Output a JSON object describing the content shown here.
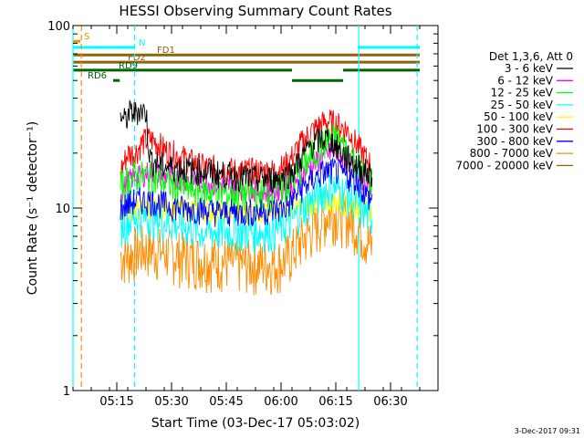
{
  "chart_data": {
    "type": "line",
    "title": "HESSI Observing Summary Count Rates",
    "xlabel": "Start Time (03-Dec-17 05:03:02)",
    "ylabel": "Count Rate (s⁻¹ detector⁻¹)",
    "y_scale": "log",
    "ylim": [
      1,
      100
    ],
    "xlim_minutes": [
      0,
      100
    ],
    "x_ticks": [
      "05:15",
      "05:30",
      "05:45",
      "06:00",
      "06:15",
      "06:30"
    ],
    "y_ticks": [
      "1",
      "10",
      "100"
    ],
    "legend_title": "Det 1,3,6, Att 0",
    "legend_position": "right",
    "timestamp": "3-Dec-2017 09:31",
    "series": [
      {
        "name": "3 - 6 keV",
        "color": "#000000",
        "x": [
          13,
          14,
          15,
          16,
          17,
          18,
          19,
          20,
          21,
          22,
          25,
          30,
          35,
          40,
          45,
          50,
          55,
          58,
          60,
          62,
          65,
          68,
          70,
          72,
          75,
          78,
          80,
          82
        ],
        "y": [
          33,
          30,
          32,
          34,
          33,
          35,
          34,
          34,
          19,
          18,
          17,
          16.5,
          16,
          15.5,
          15,
          14.5,
          14.5,
          15,
          16,
          18,
          22,
          24,
          24,
          22,
          19,
          17,
          16,
          15
        ]
      },
      {
        "name": "6 - 12 keV",
        "color": "#ff00ff",
        "x": [
          13,
          15,
          17,
          19,
          21,
          25,
          30,
          35,
          40,
          45,
          50,
          55,
          60,
          65,
          70,
          72,
          75,
          78,
          80,
          82
        ],
        "y": [
          12,
          14,
          15,
          15,
          16,
          15,
          14.5,
          14,
          13.5,
          13,
          12.5,
          12.5,
          13.5,
          17,
          20,
          20,
          18,
          16,
          14,
          13
        ]
      },
      {
        "name": "12 - 25 keV",
        "color": "#00ff00",
        "x": [
          13,
          15,
          17,
          19,
          21,
          25,
          30,
          35,
          40,
          45,
          50,
          55,
          60,
          65,
          70,
          72,
          75,
          78,
          80,
          82
        ],
        "y": [
          13,
          14,
          15,
          15,
          15,
          14,
          13,
          12.5,
          12,
          12,
          12,
          12,
          14,
          19,
          24,
          24,
          21,
          17,
          15,
          14
        ]
      },
      {
        "name": "25 - 50 keV",
        "color": "#00ffff",
        "x": [
          13,
          15,
          17,
          19,
          21,
          25,
          30,
          35,
          40,
          45,
          50,
          55,
          60,
          65,
          70,
          72,
          75,
          78,
          80,
          82
        ],
        "y": [
          8,
          8.5,
          9,
          9,
          9,
          8.5,
          8,
          7.5,
          7.5,
          7.5,
          7.5,
          7.5,
          8.5,
          11,
          13,
          13,
          12,
          10.5,
          9.5,
          9
        ]
      },
      {
        "name": "50 - 100 keV",
        "color": "#ffff00",
        "x": [
          13,
          20,
          30,
          40,
          50,
          60,
          70,
          80,
          82
        ],
        "y": [
          9.5,
          10,
          10,
          9.5,
          9.5,
          10,
          11,
          10,
          9.5
        ]
      },
      {
        "name": "100 - 300 keV",
        "color": "#ff0000",
        "x": [
          13,
          15,
          17,
          19,
          21,
          23,
          25,
          30,
          35,
          40,
          45,
          50,
          55,
          58,
          60,
          62,
          65,
          68,
          70,
          72,
          75,
          78,
          80,
          82
        ],
        "y": [
          16,
          20,
          20,
          23,
          24,
          23,
          21,
          19,
          17,
          16.5,
          16,
          16,
          16,
          17,
          19,
          22,
          26,
          29,
          30,
          29,
          27,
          22,
          19,
          17
        ]
      },
      {
        "name": "300 - 800 keV",
        "color": "#0000ff",
        "x": [
          13,
          15,
          17,
          19,
          21,
          25,
          30,
          35,
          40,
          45,
          50,
          55,
          58,
          60,
          62,
          65,
          68,
          70,
          72,
          75,
          78,
          80,
          82
        ],
        "y": [
          10,
          10.5,
          11,
          11,
          11,
          10.5,
          10,
          9.8,
          9.5,
          9.5,
          9.5,
          9.8,
          10,
          11,
          12.5,
          14,
          15.5,
          16,
          16,
          15,
          14,
          12,
          11
        ]
      },
      {
        "name": "800 - 7000 keV",
        "color": "#ff8c00",
        "x": [
          13,
          15,
          17,
          19,
          21,
          25,
          30,
          35,
          40,
          45,
          50,
          55,
          58,
          60,
          62,
          65,
          68,
          70,
          72,
          75,
          78,
          80,
          82
        ],
        "y": [
          5.5,
          5.5,
          5.8,
          6,
          6,
          5.8,
          5.5,
          5.3,
          5.2,
          5,
          5,
          5,
          5.2,
          5.7,
          6.5,
          7.5,
          8.5,
          9.5,
          9.5,
          9,
          8,
          7,
          6
        ]
      },
      {
        "name": "7000 - 20000 keV",
        "color": "#8b6508",
        "x": [],
        "y": []
      }
    ],
    "flags": [
      {
        "label": "S",
        "color": "#ff8c00",
        "x_start": 0,
        "x_end": 2,
        "y": 82
      },
      {
        "label": "N",
        "color": "#00ffff",
        "x_start": 0,
        "x_end": 17,
        "y": 76
      },
      {
        "label": "",
        "color": "#00ffff",
        "x_start": 78,
        "x_end": 95,
        "y": 76
      },
      {
        "label": "FD1",
        "color": "#8b6508",
        "x_start": 0,
        "x_end": 95,
        "y": 69
      },
      {
        "label": "FD2",
        "color": "#8b6508",
        "x_start": 0,
        "x_end": 95,
        "y": 63
      },
      {
        "label": "RD9",
        "color": "#006400",
        "x_start": 0,
        "x_end": 60,
        "y": 57
      },
      {
        "label": "",
        "color": "#006400",
        "x_start": 74,
        "x_end": 95,
        "y": 57
      },
      {
        "label": "",
        "color": "#006400",
        "x_start": 60,
        "x_end": 74,
        "y": 50
      },
      {
        "label": "RD6",
        "color": "#006400",
        "x_start": 11,
        "x_end": 12.8,
        "y": 50
      }
    ],
    "vlines": [
      {
        "x": 0,
        "color": "#00ffff",
        "style": "solid"
      },
      {
        "x": 2.3,
        "color": "#ff8c00",
        "style": "dashed"
      },
      {
        "x": 16.9,
        "color": "#00ffff",
        "style": "dashed"
      },
      {
        "x": 78.3,
        "color": "#00ffff",
        "style": "solid"
      },
      {
        "x": 94.3,
        "color": "#00ffff",
        "style": "dashed"
      }
    ]
  }
}
